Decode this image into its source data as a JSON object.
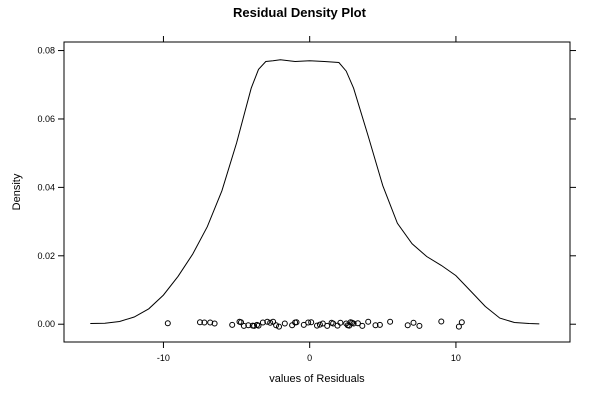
{
  "chart_data": {
    "type": "line",
    "title": "Residual Density Plot",
    "xlabel": "values of Residuals",
    "ylabel": "Density",
    "xlim": [
      -16.8,
      17.8
    ],
    "ylim": [
      -0.0052,
      0.0825
    ],
    "x_ticks": [
      -10,
      0,
      10
    ],
    "x_tick_labels": [
      "-10",
      "0",
      "10"
    ],
    "y_ticks": [
      0,
      0.02,
      0.04,
      0.06,
      0.08
    ],
    "y_tick_labels": [
      "0.00",
      "0.02",
      "0.04",
      "0.06",
      "0.08"
    ],
    "grid": false,
    "series": [
      {
        "type": "density-curve",
        "x": [
          -15,
          -14,
          -13,
          -12,
          -11,
          -10,
          -9,
          -8,
          -7,
          -6,
          -5,
          -4.5,
          -4,
          -3.5,
          -3,
          -2.5,
          -2,
          -1,
          0,
          1,
          2,
          2.5,
          3,
          4,
          5,
          6,
          7,
          8,
          9,
          10,
          11,
          12,
          13,
          14,
          15,
          15.7
        ],
        "y": [
          0.0002,
          0.0003,
          0.0008,
          0.0021,
          0.0045,
          0.0085,
          0.014,
          0.0205,
          0.0285,
          0.039,
          0.053,
          0.061,
          0.069,
          0.0745,
          0.0768,
          0.077,
          0.0773,
          0.0768,
          0.077,
          0.0768,
          0.0765,
          0.074,
          0.069,
          0.055,
          0.0405,
          0.0295,
          0.0235,
          0.0198,
          0.0172,
          0.0142,
          0.0097,
          0.0052,
          0.0018,
          0.0005,
          0.0002,
          0.0001
        ]
      },
      {
        "type": "rug-points",
        "x": [
          -9.7,
          -7.5,
          -7.2,
          -6.8,
          -6.5,
          -5.3,
          -4.8,
          -4.7,
          -4.5,
          -4.2,
          -3.9,
          -3.8,
          -3.6,
          -3.5,
          -3.2,
          -2.9,
          -2.7,
          -2.5,
          -2.3,
          -2.1,
          -1.7,
          -1.2,
          -1.0,
          -0.9,
          -0.4,
          -0.1,
          0.1,
          0.5,
          0.7,
          0.9,
          1.2,
          1.5,
          1.6,
          1.9,
          2.1,
          2.5,
          2.6,
          2.7,
          2.8,
          2.9,
          3.0,
          3.3,
          3.6,
          4.0,
          4.5,
          4.8,
          5.5,
          6.7,
          7.1,
          7.5,
          9.0,
          10.2,
          10.4
        ],
        "y": [
          0.0003,
          0.0006,
          0.0005,
          0.0005,
          0.0002,
          -0.0002,
          0.0007,
          0.0006,
          -0.0005,
          -0.0003,
          -0.0004,
          -0.0005,
          -0.0002,
          -0.0004,
          0.0005,
          0.0007,
          0.0004,
          0.0007,
          -0.0003,
          -0.0007,
          0.0002,
          -0.0003,
          0.0005,
          0.0006,
          -0.0002,
          0.0005,
          0.0006,
          -0.0004,
          -0.0001,
          0.0002,
          -0.0005,
          0.0004,
          0.0002,
          -0.0004,
          0.0004,
          0.0002,
          -0.0003,
          -0.0004,
          0.0006,
          0.0004,
          0.0002,
          0.0003,
          -0.0005,
          0.0007,
          -0.0003,
          -0.0002,
          0.0007,
          -0.0003,
          0.0004,
          -0.0005,
          0.0008,
          -0.0007,
          0.0006
        ]
      }
    ]
  }
}
